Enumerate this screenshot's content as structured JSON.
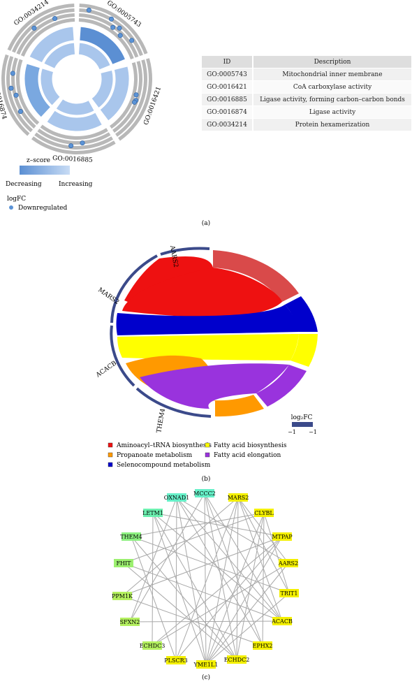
{
  "figure": {
    "panel_a_label": "(a)",
    "panel_b_label": "(b)",
    "panel_c_label": "(c)"
  },
  "panel_a": {
    "go_labels": [
      "GO:0005743",
      "GO:0016421",
      "GO:0016885",
      "GO:0016874",
      "GO:0034214"
    ],
    "zscore_title": "z–score",
    "zscore_low": "Decreasing",
    "zscore_high": "Increasing",
    "logfc_title": "logFC",
    "logfc_item": "Downregulated",
    "colors": {
      "dot": "#5b93d6",
      "track": "#b8b8b8",
      "dark_blue": "#5b8fd3",
      "light_blue": "#a9c6ec"
    }
  },
  "table": {
    "headers": [
      "ID",
      "Description"
    ],
    "rows": [
      [
        "GO:0005743",
        "Mitochondrial inner membrane"
      ],
      [
        "GO:0016421",
        "CoA carboxylase activity"
      ],
      [
        "GO:0016885",
        "Ligase activity, forming carbon–carbon bonds"
      ],
      [
        "GO:0016874",
        "Ligase activity"
      ],
      [
        "GO:0034214",
        "Protein hexamerization"
      ]
    ]
  },
  "panel_b": {
    "genes": [
      "AARS2",
      "MARS2",
      "ACACB",
      "THEM4"
    ],
    "logfc_title": "log₂FC",
    "logfc_min": "−1",
    "logfc_max": "−1",
    "legend": [
      {
        "label": "Aminoacyl–tRNA biosynthesis",
        "color": "#ee1111"
      },
      {
        "label": "Fatty acid biosynthesis",
        "color": "#ffff00"
      },
      {
        "label": "Propanoate metabolism",
        "color": "#ff9900"
      },
      {
        "label": "Fatty acid elongation",
        "color": "#9933dd"
      },
      {
        "label": "Selenocompound metabolism",
        "color": "#0000cc"
      }
    ]
  },
  "panel_c": {
    "nodes": [
      {
        "label": "MCCC2",
        "color": "#66f0c8"
      },
      {
        "label": "MARS2",
        "color": "#f4f000"
      },
      {
        "label": "CLYBL",
        "color": "#f4f000"
      },
      {
        "label": "MTPAP",
        "color": "#f4f000"
      },
      {
        "label": "AARS2",
        "color": "#f4f000"
      },
      {
        "label": "TRIT1",
        "color": "#f4f000"
      },
      {
        "label": "ACACB",
        "color": "#f4f000"
      },
      {
        "label": "EPHX2",
        "color": "#f4f000"
      },
      {
        "label": "ECHDC2",
        "color": "#f4f000"
      },
      {
        "label": "YME1L1",
        "color": "#f4f000"
      },
      {
        "label": "PLSCR3",
        "color": "#f4f000"
      },
      {
        "label": "ECHDC3",
        "color": "#b4f060"
      },
      {
        "label": "SFXN2",
        "color": "#b4f060"
      },
      {
        "label": "PPM1K",
        "color": "#b4f060"
      },
      {
        "label": "FHIT",
        "color": "#9cf070"
      },
      {
        "label": "THEM4",
        "color": "#8cf080"
      },
      {
        "label": "LETM1",
        "color": "#6cf0b0"
      },
      {
        "label": "OXNAD1",
        "color": "#66f0c8"
      }
    ]
  }
}
